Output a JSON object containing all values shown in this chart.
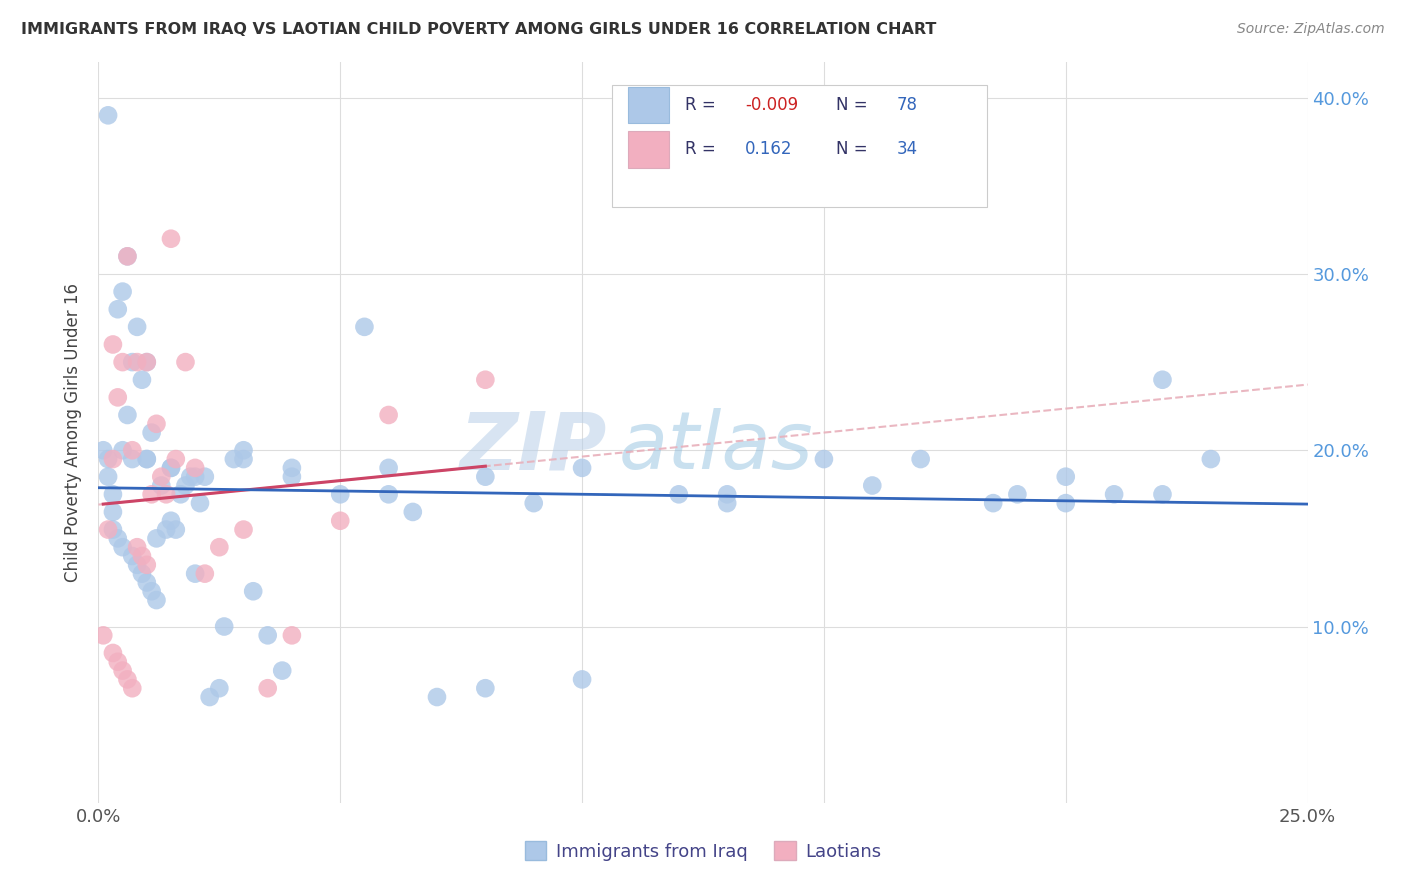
{
  "title": "IMMIGRANTS FROM IRAQ VS LAOTIAN CHILD POVERTY AMONG GIRLS UNDER 16 CORRELATION CHART",
  "source": "Source: ZipAtlas.com",
  "ylabel": "Child Poverty Among Girls Under 16",
  "xlim": [
    0.0,
    0.25
  ],
  "ylim": [
    0.0,
    0.42
  ],
  "r_iraq": -0.009,
  "n_iraq": 78,
  "r_laotian": 0.162,
  "n_laotian": 34,
  "color_iraq": "#adc8e8",
  "color_laotian": "#f2afc0",
  "color_iraq_line": "#3366bb",
  "color_laotian_line": "#cc4466",
  "color_laotian_dash": "#e8b0bb",
  "watermark_zip": "ZIP",
  "watermark_atlas": "atlas",
  "iraq_x": [
    0.001,
    0.002,
    0.002,
    0.003,
    0.003,
    0.004,
    0.004,
    0.005,
    0.005,
    0.005,
    0.006,
    0.006,
    0.007,
    0.007,
    0.007,
    0.008,
    0.008,
    0.009,
    0.009,
    0.01,
    0.01,
    0.01,
    0.011,
    0.011,
    0.012,
    0.012,
    0.013,
    0.014,
    0.015,
    0.015,
    0.016,
    0.017,
    0.018,
    0.019,
    0.02,
    0.021,
    0.022,
    0.023,
    0.025,
    0.026,
    0.028,
    0.03,
    0.032,
    0.035,
    0.038,
    0.04,
    0.05,
    0.055,
    0.06,
    0.065,
    0.07,
    0.08,
    0.09,
    0.1,
    0.12,
    0.13,
    0.15,
    0.17,
    0.185,
    0.2,
    0.21,
    0.22,
    0.23,
    0.01,
    0.015,
    0.02,
    0.03,
    0.04,
    0.06,
    0.08,
    0.1,
    0.13,
    0.16,
    0.19,
    0.2,
    0.22,
    0.002,
    0.003
  ],
  "iraq_y": [
    0.2,
    0.195,
    0.185,
    0.175,
    0.165,
    0.28,
    0.15,
    0.29,
    0.2,
    0.145,
    0.31,
    0.22,
    0.25,
    0.195,
    0.14,
    0.27,
    0.135,
    0.24,
    0.13,
    0.195,
    0.25,
    0.125,
    0.21,
    0.12,
    0.15,
    0.115,
    0.18,
    0.155,
    0.19,
    0.16,
    0.155,
    0.175,
    0.18,
    0.185,
    0.13,
    0.17,
    0.185,
    0.06,
    0.065,
    0.1,
    0.195,
    0.2,
    0.12,
    0.095,
    0.075,
    0.19,
    0.175,
    0.27,
    0.175,
    0.165,
    0.06,
    0.065,
    0.17,
    0.07,
    0.175,
    0.175,
    0.195,
    0.195,
    0.17,
    0.17,
    0.175,
    0.24,
    0.195,
    0.195,
    0.19,
    0.185,
    0.195,
    0.185,
    0.19,
    0.185,
    0.19,
    0.17,
    0.18,
    0.175,
    0.185,
    0.175,
    0.39,
    0.155
  ],
  "laotian_x": [
    0.001,
    0.002,
    0.003,
    0.003,
    0.004,
    0.004,
    0.005,
    0.005,
    0.006,
    0.006,
    0.007,
    0.007,
    0.008,
    0.008,
    0.009,
    0.01,
    0.01,
    0.011,
    0.012,
    0.013,
    0.014,
    0.015,
    0.016,
    0.018,
    0.02,
    0.022,
    0.025,
    0.03,
    0.035,
    0.04,
    0.05,
    0.06,
    0.08,
    0.003
  ],
  "laotian_y": [
    0.095,
    0.155,
    0.195,
    0.085,
    0.23,
    0.08,
    0.25,
    0.075,
    0.31,
    0.07,
    0.2,
    0.065,
    0.25,
    0.145,
    0.14,
    0.25,
    0.135,
    0.175,
    0.215,
    0.185,
    0.175,
    0.32,
    0.195,
    0.25,
    0.19,
    0.13,
    0.145,
    0.155,
    0.065,
    0.095,
    0.16,
    0.22,
    0.24,
    0.26
  ]
}
